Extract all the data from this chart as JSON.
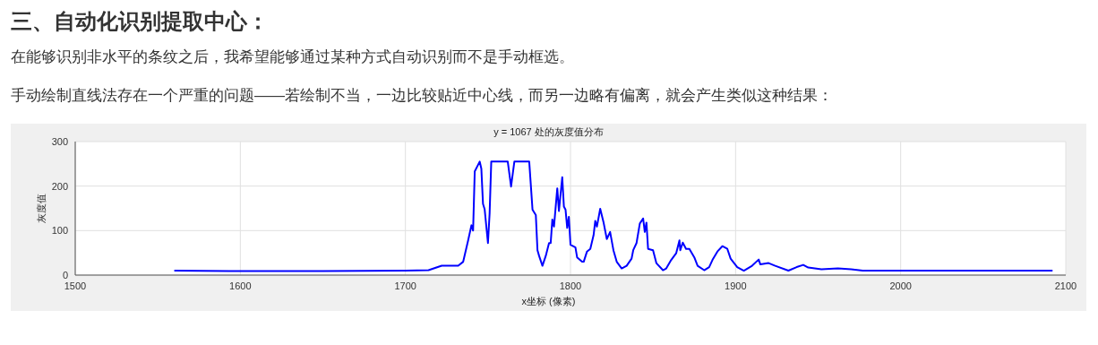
{
  "chart_data": {
    "type": "line",
    "title": "y = 1067 处的灰度值分布",
    "xlabel": "x坐标 (像素)",
    "ylabel": "灰度值",
    "annotations": [
      "三、自动化识别提取中心：",
      "在能够识别非水平的条纹之后，我希望能够通过某种方式自动识别而不是手动框选。",
      "手动绘制直线法存在一个严重的问题——若绘制不当，一边比较贴近中心线，而另一边略有偏离，就会产生类似这种结果："
    ],
    "series": [
      {
        "color": "#0000ff",
        "x": [
          1560,
          1600,
          1650,
          1700,
          1714,
          1722,
          1732,
          1735,
          1738,
          1740,
          1741,
          1742,
          1745,
          1746,
          1747,
          1748,
          1750,
          1751,
          1752,
          1762,
          1764,
          1766,
          1775,
          1777,
          1779,
          1780,
          1781,
          1783,
          1785,
          1787,
          1788,
          1789,
          1790,
          1792,
          1793,
          1795,
          1796,
          1797,
          1798,
          1799,
          1800,
          1803,
          1804,
          1807,
          1808,
          1810,
          1812,
          1814,
          1815,
          1816,
          1818,
          1820,
          1822,
          1824,
          1826,
          1828,
          1831,
          1834,
          1837,
          1838,
          1840,
          1842,
          1844,
          1845,
          1846,
          1847,
          1850,
          1852,
          1856,
          1858,
          1861,
          1864,
          1866,
          1866.5,
          1868,
          1870,
          1872,
          1875,
          1877,
          1881,
          1884,
          1886,
          1889,
          1892,
          1895,
          1897,
          1901,
          1905,
          1910,
          1914,
          1915,
          1920,
          1924,
          1932,
          1937,
          1941,
          1944,
          1952,
          1962,
          1970,
          1977,
          1983,
          2000,
          2050,
          2092
        ],
        "values": [
          10,
          9,
          9,
          10,
          11,
          21,
          21,
          30,
          78,
          112,
          100,
          233,
          255,
          239,
          160,
          148,
          72,
          138,
          255,
          255,
          199,
          255,
          255,
          147,
          135,
          56,
          43,
          21,
          43,
          72,
          72,
          125,
          109,
          195,
          144,
          220,
          154,
          147,
          106,
          131,
          68,
          62,
          40,
          30,
          30,
          53,
          59,
          90,
          122,
          109,
          149,
          119,
          81,
          97,
          56,
          30,
          15,
          21,
          37,
          56,
          72,
          116,
          127,
          97,
          118,
          59,
          56,
          27,
          11,
          15,
          34,
          49,
          78,
          56,
          73,
          59,
          59,
          40,
          21,
          11,
          18,
          34,
          53,
          65,
          59,
          37,
          18,
          10,
          21,
          35,
          24,
          27,
          21,
          10,
          18,
          23,
          17,
          13,
          15,
          13,
          10,
          10,
          10,
          10,
          10
        ]
      }
    ],
    "xlim": [
      1500,
      2100
    ],
    "xticks": [
      1500,
      1600,
      1700,
      1800,
      1900,
      2000,
      2100
    ],
    "ylim": [
      0,
      300
    ],
    "yticks": [
      0,
      100,
      200,
      300
    ],
    "grid": true
  }
}
